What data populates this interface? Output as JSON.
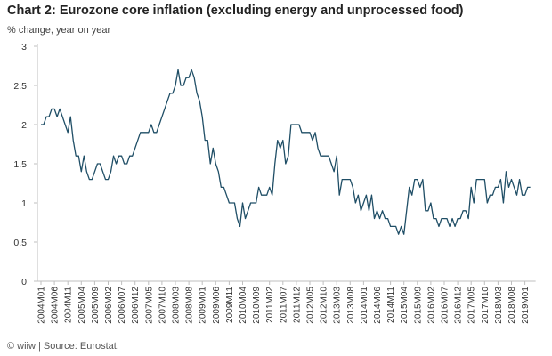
{
  "chart_data": {
    "type": "line",
    "title": "Chart 2: Eurozone core inflation (excluding energy and unprocessed food)",
    "ylabel": "% change, year on year",
    "xlabel": "",
    "source": "© wiiw | Source: Eurostat.",
    "ylim": [
      0,
      3
    ],
    "yticks": [
      0,
      0.5,
      1,
      1.5,
      2,
      2.5,
      3
    ],
    "grid": false,
    "legend": "none",
    "line_color": "#1f4e66",
    "start_month": "2004M01",
    "x_tick_labels": [
      "2004M01",
      "2004M06",
      "2004M11",
      "2005M04",
      "2005M09",
      "2006M02",
      "2006M07",
      "2006M12",
      "2007M05",
      "2007M10",
      "2008M03",
      "2008M08",
      "2009M01",
      "2009M06",
      "2009M11",
      "2010M04",
      "2010M09",
      "2011M02",
      "2011M07",
      "2011M12",
      "2012M05",
      "2012M10",
      "2013M03",
      "2013M08",
      "2014M01",
      "2014M06",
      "2014M11",
      "2015M04",
      "2015M09",
      "2016M02",
      "2016M07",
      "2016M12",
      "2017M05",
      "2017M10",
      "2018M03",
      "2018M08",
      "2019M01"
    ],
    "series": [
      {
        "name": "",
        "x": [
          "2004M01",
          "2004M02",
          "2004M03",
          "2004M04",
          "2004M05",
          "2004M06",
          "2004M07",
          "2004M08",
          "2004M09",
          "2004M10",
          "2004M11",
          "2004M12",
          "2005M01",
          "2005M02",
          "2005M03",
          "2005M04",
          "2005M05",
          "2005M06",
          "2005M07",
          "2005M08",
          "2005M09",
          "2005M10",
          "2005M11",
          "2005M12",
          "2006M01",
          "2006M02",
          "2006M03",
          "2006M04",
          "2006M05",
          "2006M06",
          "2006M07",
          "2006M08",
          "2006M09",
          "2006M10",
          "2006M11",
          "2006M12",
          "2007M01",
          "2007M02",
          "2007M03",
          "2007M04",
          "2007M05",
          "2007M06",
          "2007M07",
          "2007M08",
          "2007M09",
          "2007M10",
          "2007M11",
          "2007M12",
          "2008M01",
          "2008M02",
          "2008M03",
          "2008M04",
          "2008M05",
          "2008M06",
          "2008M07",
          "2008M08",
          "2008M09",
          "2008M10",
          "2008M11",
          "2008M12",
          "2009M01",
          "2009M02",
          "2009M03",
          "2009M04",
          "2009M05",
          "2009M06",
          "2009M07",
          "2009M08",
          "2009M09",
          "2009M10",
          "2009M11",
          "2009M12",
          "2010M01",
          "2010M02",
          "2010M03",
          "2010M04",
          "2010M05",
          "2010M06",
          "2010M07",
          "2010M08",
          "2010M09",
          "2010M10",
          "2010M11",
          "2010M12",
          "2011M01",
          "2011M02",
          "2011M03",
          "2011M04",
          "2011M05",
          "2011M06",
          "2011M07",
          "2011M08",
          "2011M09",
          "2011M10",
          "2011M11",
          "2011M12",
          "2012M01",
          "2012M02",
          "2012M03",
          "2012M04",
          "2012M05",
          "2012M06",
          "2012M07",
          "2012M08",
          "2012M09",
          "2012M10",
          "2012M11",
          "2012M12",
          "2013M01",
          "2013M02",
          "2013M03",
          "2013M04",
          "2013M05",
          "2013M06",
          "2013M07",
          "2013M08",
          "2013M09",
          "2013M10",
          "2013M11",
          "2013M12",
          "2014M01",
          "2014M02",
          "2014M03",
          "2014M04",
          "2014M05",
          "2014M06",
          "2014M07",
          "2014M08",
          "2014M09",
          "2014M10",
          "2014M11",
          "2014M12",
          "2015M01",
          "2015M02",
          "2015M03",
          "2015M04",
          "2015M05",
          "2015M06",
          "2015M07",
          "2015M08",
          "2015M09",
          "2015M10",
          "2015M11",
          "2015M12",
          "2016M01",
          "2016M02",
          "2016M03",
          "2016M04",
          "2016M05",
          "2016M06",
          "2016M07",
          "2016M08",
          "2016M09",
          "2016M10",
          "2016M11",
          "2016M12",
          "2017M01",
          "2017M02",
          "2017M03",
          "2017M04",
          "2017M05",
          "2017M06",
          "2017M07",
          "2017M08",
          "2017M09",
          "2017M10",
          "2017M11",
          "2017M12",
          "2018M01",
          "2018M02",
          "2018M03",
          "2018M04",
          "2018M05",
          "2018M06",
          "2018M07",
          "2018M08",
          "2018M09",
          "2018M10",
          "2018M11",
          "2018M12",
          "2019M01",
          "2019M02",
          "2019M03"
        ],
        "values": [
          2.0,
          2.0,
          2.1,
          2.1,
          2.2,
          2.2,
          2.1,
          2.2,
          2.1,
          2.0,
          1.9,
          2.1,
          1.8,
          1.6,
          1.6,
          1.4,
          1.6,
          1.4,
          1.3,
          1.3,
          1.4,
          1.5,
          1.5,
          1.4,
          1.3,
          1.3,
          1.4,
          1.6,
          1.5,
          1.6,
          1.6,
          1.5,
          1.5,
          1.6,
          1.6,
          1.7,
          1.8,
          1.9,
          1.9,
          1.9,
          1.9,
          2.0,
          1.9,
          1.9,
          2.0,
          2.1,
          2.2,
          2.3,
          2.4,
          2.4,
          2.5,
          2.7,
          2.5,
          2.5,
          2.6,
          2.6,
          2.7,
          2.6,
          2.4,
          2.3,
          2.1,
          1.8,
          1.8,
          1.5,
          1.7,
          1.5,
          1.4,
          1.2,
          1.2,
          1.1,
          1.0,
          1.0,
          1.0,
          0.8,
          0.7,
          1.0,
          0.8,
          0.9,
          1.0,
          1.0,
          1.0,
          1.2,
          1.1,
          1.1,
          1.1,
          1.2,
          1.1,
          1.5,
          1.8,
          1.7,
          1.8,
          1.5,
          1.6,
          2.0,
          2.0,
          2.0,
          2.0,
          1.9,
          1.9,
          1.9,
          1.9,
          1.8,
          1.9,
          1.7,
          1.6,
          1.6,
          1.6,
          1.6,
          1.5,
          1.4,
          1.6,
          1.1,
          1.3,
          1.3,
          1.3,
          1.3,
          1.2,
          1.0,
          1.1,
          0.9,
          1.0,
          1.1,
          0.9,
          1.1,
          0.8,
          0.9,
          0.8,
          0.9,
          0.8,
          0.8,
          0.7,
          0.7,
          0.7,
          0.6,
          0.7,
          0.6,
          0.9,
          1.2,
          1.1,
          1.3,
          1.3,
          1.2,
          1.3,
          0.9,
          0.9,
          1.0,
          0.8,
          0.8,
          0.7,
          0.8,
          0.8,
          0.8,
          0.7,
          0.8,
          0.7,
          0.8,
          0.8,
          0.9,
          0.9,
          0.8,
          1.2,
          1.0,
          1.3,
          1.3,
          1.3,
          1.3,
          1.0,
          1.1,
          1.1,
          1.2,
          1.2,
          1.3,
          1.0,
          1.4,
          1.2,
          1.3,
          1.2,
          1.1,
          1.3,
          1.1,
          1.1,
          1.2,
          1.2
        ]
      }
    ]
  }
}
